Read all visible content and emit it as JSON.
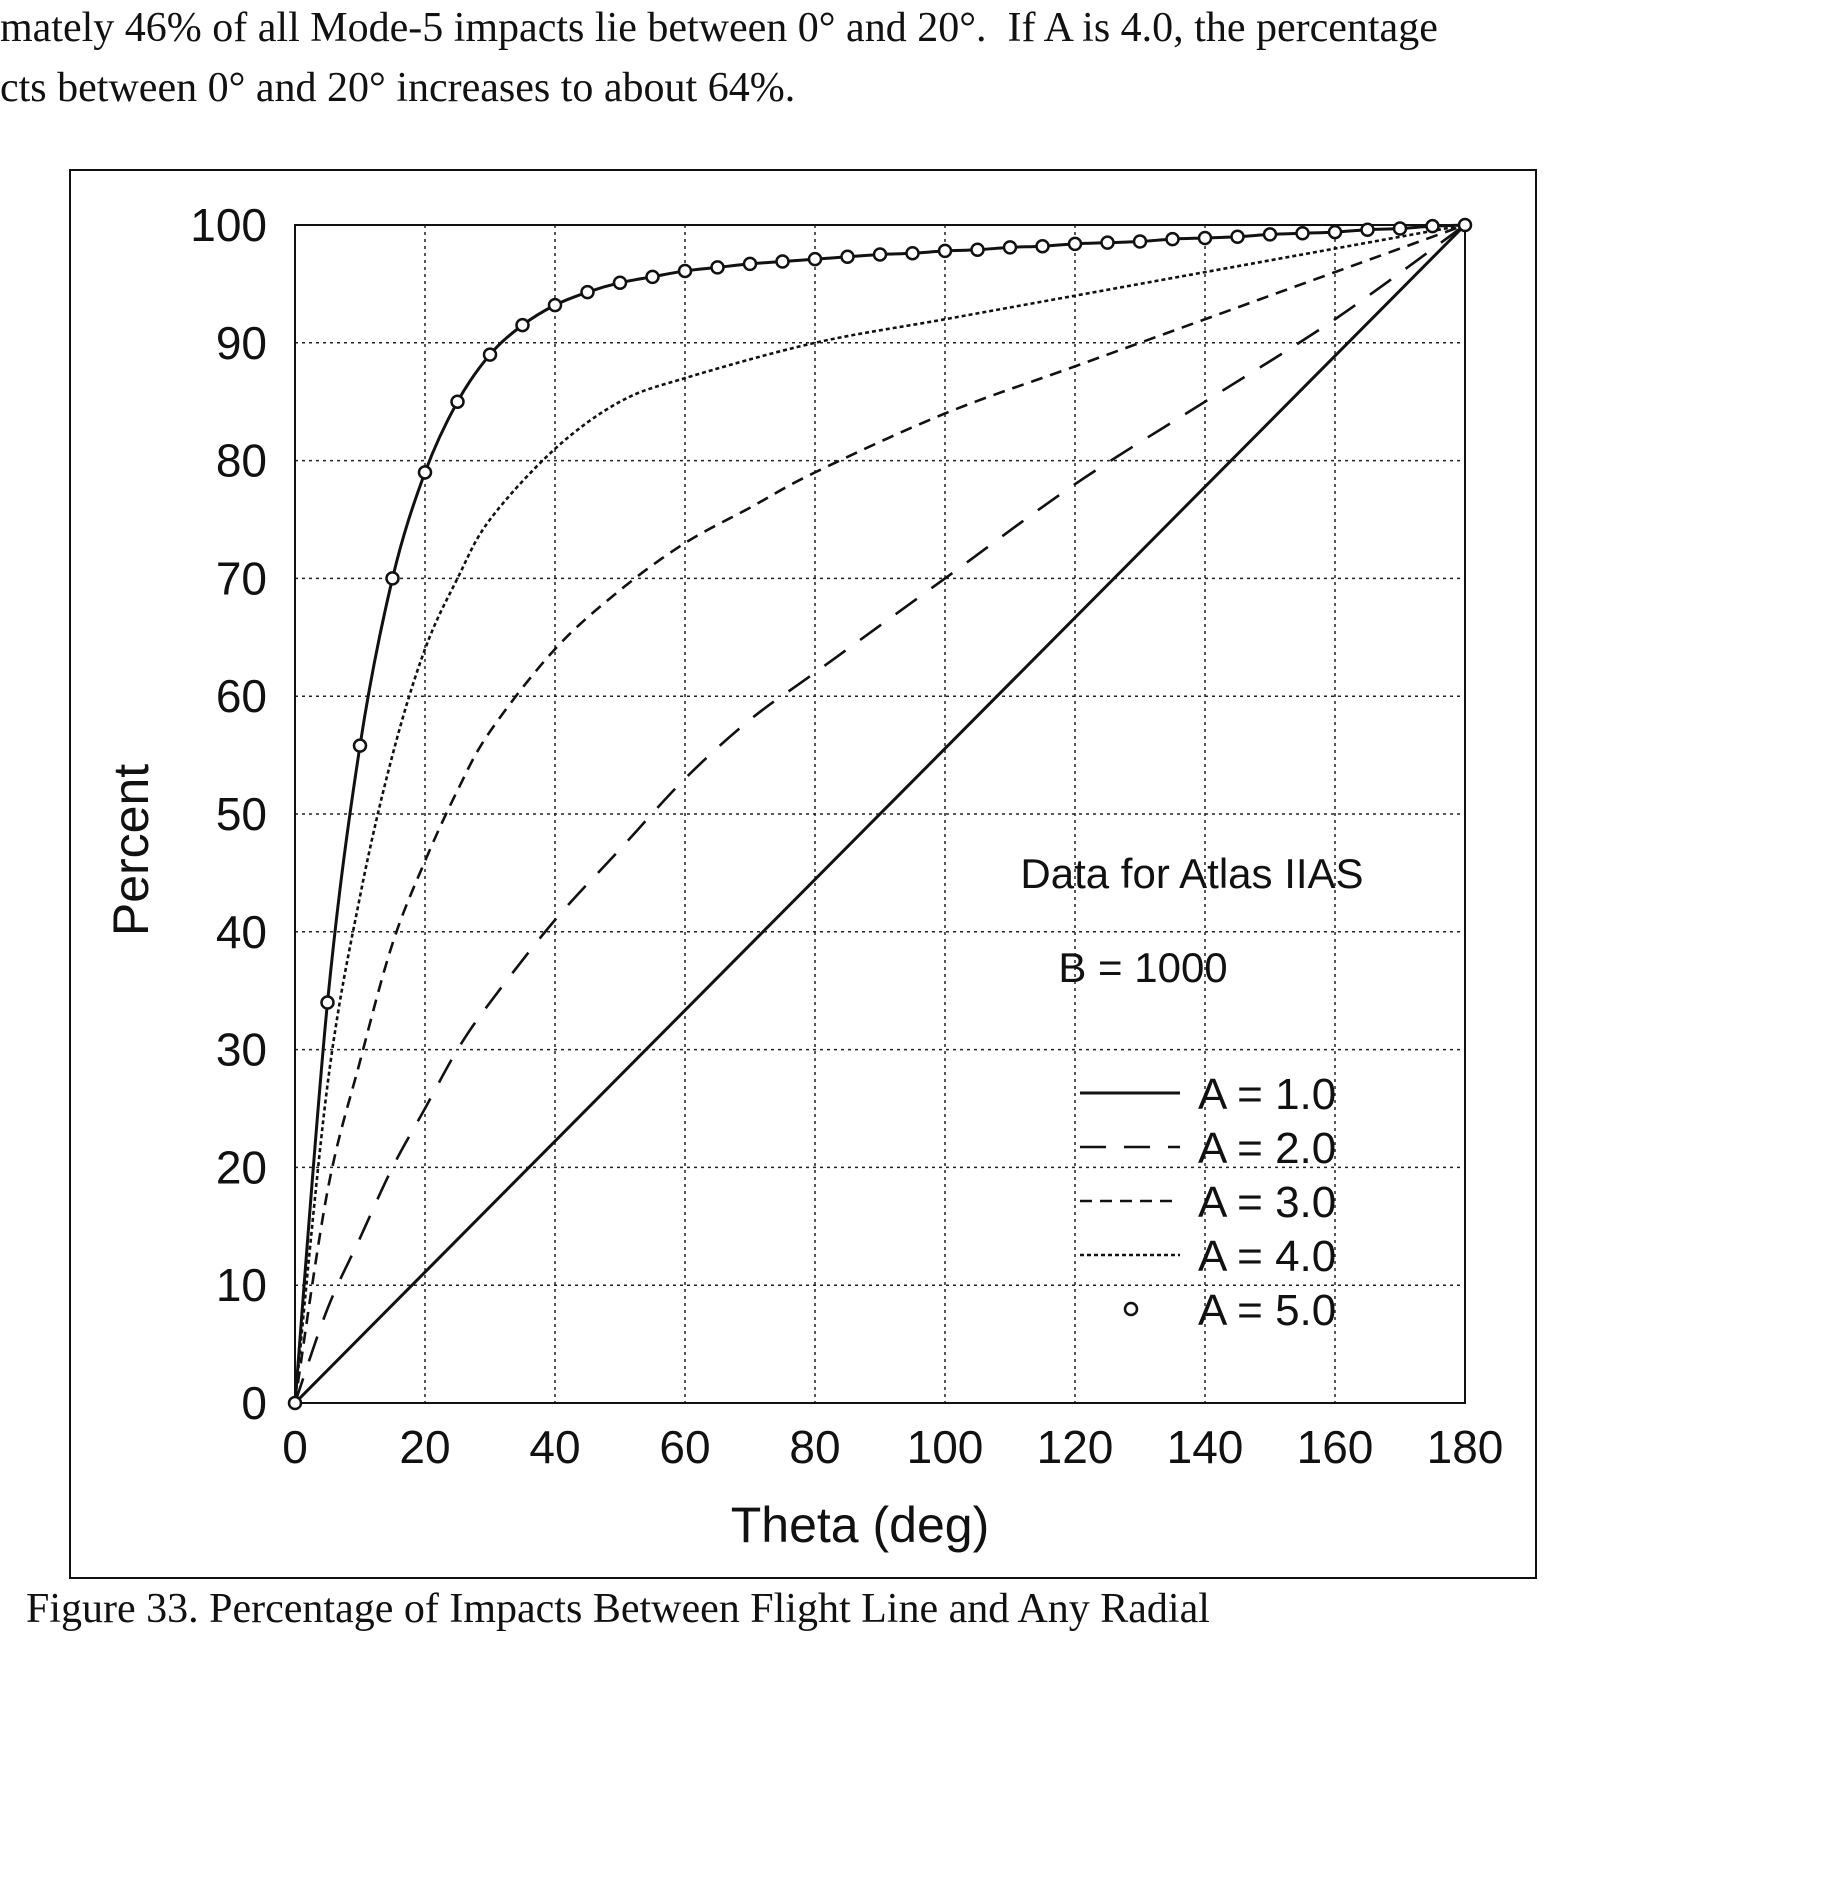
{
  "intro_text": {
    "line1": "mately 46% of all Mode-5 impacts lie between 0° and 20°.  If A is 4.0, the percentage",
    "line2": "cts between 0° and 20° increases to about 64%."
  },
  "caption": "Figure 33. Percentage of Impacts Between Flight Line and Any Radial",
  "chart_data": {
    "type": "line",
    "xlabel": "Theta (deg)",
    "ylabel": "Percent",
    "xlim": [
      0,
      180
    ],
    "ylim": [
      0,
      100
    ],
    "x_ticks": [
      0,
      20,
      40,
      60,
      80,
      100,
      120,
      140,
      160,
      180
    ],
    "y_ticks": [
      0,
      10,
      20,
      30,
      40,
      50,
      60,
      70,
      80,
      90,
      100
    ],
    "grid": true,
    "annotations": [
      "Data for Atlas IIAS",
      "B = 1000"
    ],
    "legend_position": "lower-right",
    "series": [
      {
        "name": "A = 1.0",
        "style": "solid",
        "x": [
          0,
          180
        ],
        "y": [
          0,
          100
        ]
      },
      {
        "name": "A = 2.0",
        "style": "long-dash",
        "x": [
          0,
          5,
          10,
          15,
          20,
          25,
          30,
          40,
          50,
          60,
          70,
          80,
          100,
          120,
          140,
          160,
          180
        ],
        "y": [
          0,
          8,
          14,
          20,
          25,
          30,
          34,
          41,
          47,
          53,
          58,
          62,
          70,
          78,
          85,
          92,
          100
        ]
      },
      {
        "name": "A = 3.0",
        "style": "short-dash",
        "x": [
          0,
          5,
          10,
          15,
          20,
          25,
          30,
          40,
          50,
          60,
          70,
          80,
          100,
          120,
          140,
          160,
          180
        ],
        "y": [
          0,
          18,
          29,
          39,
          46,
          52,
          57,
          64,
          69,
          73,
          76,
          79,
          84,
          88,
          92,
          96,
          100
        ]
      },
      {
        "name": "A = 4.0",
        "style": "dotted",
        "x": [
          0,
          5,
          10,
          15,
          20,
          25,
          30,
          40,
          50,
          60,
          80,
          100,
          120,
          140,
          160,
          180
        ],
        "y": [
          0,
          27,
          43,
          55,
          64,
          70,
          75,
          81,
          85,
          87,
          90,
          92,
          94,
          96,
          98,
          100
        ]
      },
      {
        "name": "A = 5.0",
        "style": "solid-circles",
        "x": [
          0,
          5,
          10,
          15,
          20,
          25,
          30,
          35,
          40,
          45,
          50,
          55,
          60,
          65,
          70,
          75,
          80,
          85,
          90,
          95,
          100,
          105,
          110,
          115,
          120,
          125,
          130,
          135,
          140,
          145,
          150,
          155,
          160,
          165,
          170,
          175,
          180
        ],
        "y": [
          0,
          34,
          55.8,
          70,
          79,
          85,
          89,
          91.5,
          93.2,
          94.3,
          95.1,
          95.6,
          96.1,
          96.4,
          96.7,
          96.9,
          97.1,
          97.3,
          97.5,
          97.6,
          97.8,
          97.9,
          98.1,
          98.2,
          98.4,
          98.5,
          98.6,
          98.8,
          98.9,
          99.0,
          99.2,
          99.3,
          99.4,
          99.6,
          99.7,
          99.9,
          100
        ]
      }
    ]
  }
}
